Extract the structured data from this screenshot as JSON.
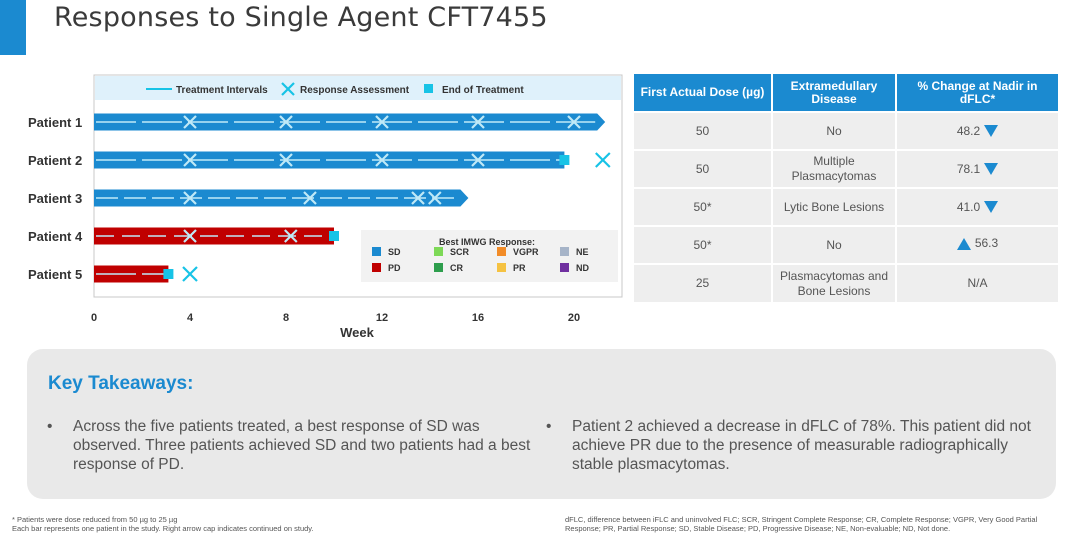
{
  "title": "Responses to Single Agent CFT7455",
  "colors": {
    "accent": "#1b8ad0",
    "SD": "#1b8ad0",
    "PD": "#c00000",
    "SCR": "#7ed957",
    "CR": "#2e9e4d",
    "VGPR": "#f28c28",
    "PR": "#f5c242",
    "NE": "#a6b4c8",
    "ND": "#7030a0",
    "cyan": "#17c3e6"
  },
  "chart_data": {
    "type": "bar",
    "orientation": "horizontal",
    "xlabel": "Week",
    "xlim": [
      0,
      22
    ],
    "xticks": [
      0,
      4,
      8,
      12,
      16,
      20
    ],
    "categories": [
      "Patient 1",
      "Patient 2",
      "Patient 3",
      "Patient 4",
      "Patient 5"
    ],
    "top_legend": [
      "Treatment Intervals",
      "Response Assessment",
      "End of Treatment"
    ],
    "response_legend_title": "Best IMWG Response:",
    "response_legend": [
      "SD",
      "SCR",
      "VGPR",
      "NE",
      "PD",
      "CR",
      "PR",
      "ND"
    ],
    "bars": [
      {
        "patient": "Patient 1",
        "end": 21.3,
        "response": "SD",
        "arrow": true,
        "end_of_treatment": null,
        "assessments": [
          4,
          8,
          12,
          16,
          20
        ]
      },
      {
        "patient": "Patient 2",
        "end": 19.6,
        "response": "SD",
        "arrow": false,
        "end_of_treatment": 19.6,
        "assessments": [
          4,
          8,
          12,
          16,
          21.2
        ]
      },
      {
        "patient": "Patient 3",
        "end": 15.6,
        "response": "SD",
        "arrow": true,
        "end_of_treatment": null,
        "assessments": [
          4,
          9,
          13.5,
          14.2
        ]
      },
      {
        "patient": "Patient 4",
        "end": 10,
        "response": "PD",
        "arrow": false,
        "end_of_treatment": 10,
        "assessments": [
          4,
          8.2
        ]
      },
      {
        "patient": "Patient 5",
        "end": 3.1,
        "response": "PD",
        "arrow": false,
        "end_of_treatment": 3.1,
        "assessments": [
          4
        ]
      }
    ]
  },
  "table": {
    "headers": [
      "First Actual Dose (µg)",
      "Extramedullary Disease",
      "% Change at Nadir in dFLC*"
    ],
    "rows": [
      {
        "dose": "50",
        "disease": "No",
        "change": "48.2",
        "dir": "down"
      },
      {
        "dose": "50",
        "disease": "Multiple Plasmacytomas",
        "change": "78.1",
        "dir": "down"
      },
      {
        "dose": "50*",
        "disease": "Lytic Bone Lesions",
        "change": "41.0",
        "dir": "down"
      },
      {
        "dose": "50*",
        "disease": "No",
        "change": "56.3",
        "dir": "up"
      },
      {
        "dose": "25",
        "disease": "Plasmacytomas and Bone Lesions",
        "change": "N/A",
        "dir": ""
      }
    ]
  },
  "takeaways": {
    "heading": "Key Takeaways:",
    "items": [
      "Across the five patients treated, a best response of SD was observed. Three patients achieved SD and two patients had a best response of PD.",
      "Patient 2 achieved a decrease in dFLC of 78%. This patient did not achieve PR due to the presence of measurable radiographically stable plasmacytomas."
    ]
  },
  "footnotes": {
    "left": [
      "* Patients were dose reduced from 50 µg to 25 µg",
      "Each bar represents one patient in the study.  Right arrow cap indicates continued on study."
    ],
    "right": "dFLC, difference between iFLC and uninvolved FLC; SCR, Stringent Complete Response; CR, Complete Response; VGPR, Very Good Partial Response; PR, Partial Response; SD, Stable Disease; PD, Progressive Disease; NE, Non-evaluable; ND, Not done."
  }
}
